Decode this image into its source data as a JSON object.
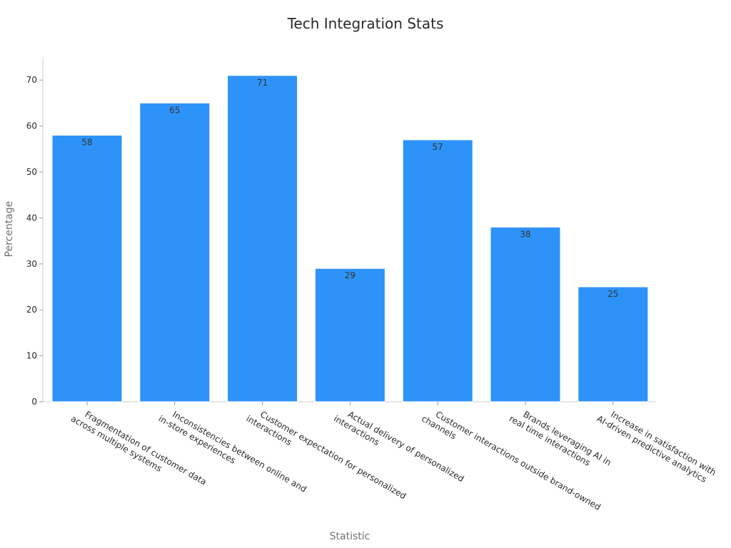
{
  "chart_data": {
    "type": "bar",
    "title": "Tech Integration Stats",
    "xlabel": "Statistic",
    "ylabel": "Percentage",
    "categories": [
      [
        "Fragmentation of customer data",
        "across multiple systems"
      ],
      [
        "Inconsistencies between online and",
        "in-store experiences"
      ],
      [
        "Customer expectation for personalized",
        "interactions"
      ],
      [
        "Actual delivery of personalized",
        "interactions"
      ],
      [
        "Customer interactions outside brand-owned",
        "channels"
      ],
      [
        "Brands leveraging AI in",
        "real time interactions"
      ],
      [
        "Increase in satisfaction with",
        "AI-driven predictive analytics"
      ]
    ],
    "values": [
      58,
      65,
      71,
      29,
      57,
      38,
      25
    ],
    "ylim": [
      0,
      75
    ],
    "yticks": [
      0,
      10,
      20,
      30,
      40,
      50,
      60,
      70
    ],
    "bar_color": "#2e93f8",
    "grid": false,
    "legend": "none"
  }
}
